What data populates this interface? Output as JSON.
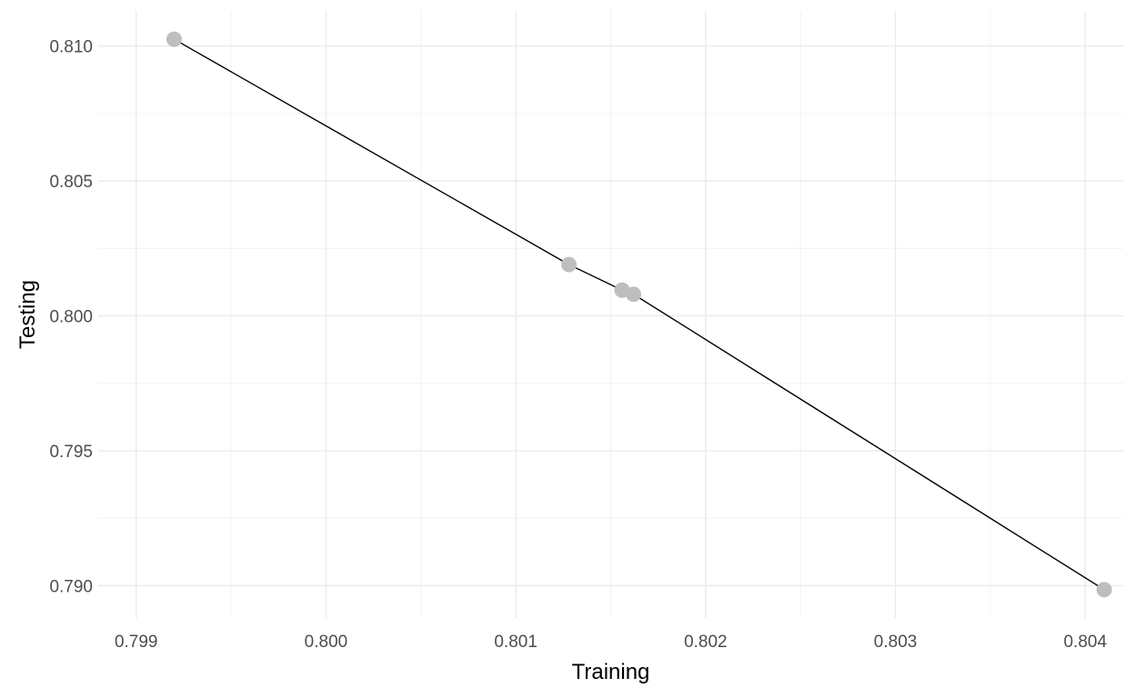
{
  "chart_data": {
    "type": "line",
    "title": "",
    "xlabel": "Training",
    "ylabel": "Testing",
    "xlim": [
      0.7988,
      0.8042
    ],
    "ylim": [
      0.7888,
      0.8113
    ],
    "x_ticks": [
      0.799,
      0.8,
      0.801,
      0.802,
      0.803,
      0.804
    ],
    "x_tick_labels": [
      "0.799",
      "0.800",
      "0.801",
      "0.802",
      "0.803",
      "0.804"
    ],
    "y_ticks": [
      0.79,
      0.795,
      0.8,
      0.805,
      0.81
    ],
    "y_tick_labels": [
      "0.790",
      "0.795",
      "0.800",
      "0.805",
      "0.810"
    ],
    "grid": true,
    "legend": "none",
    "series": [
      {
        "points": [
          {
            "x": 0.7992,
            "y": 0.81025
          },
          {
            "x": 0.80128,
            "y": 0.8019
          },
          {
            "x": 0.80156,
            "y": 0.80095
          },
          {
            "x": 0.80162,
            "y": 0.8008
          },
          {
            "x": 0.8041,
            "y": 0.78985
          }
        ],
        "line_color": "#000000",
        "point_color": "#bebebe"
      }
    ]
  }
}
